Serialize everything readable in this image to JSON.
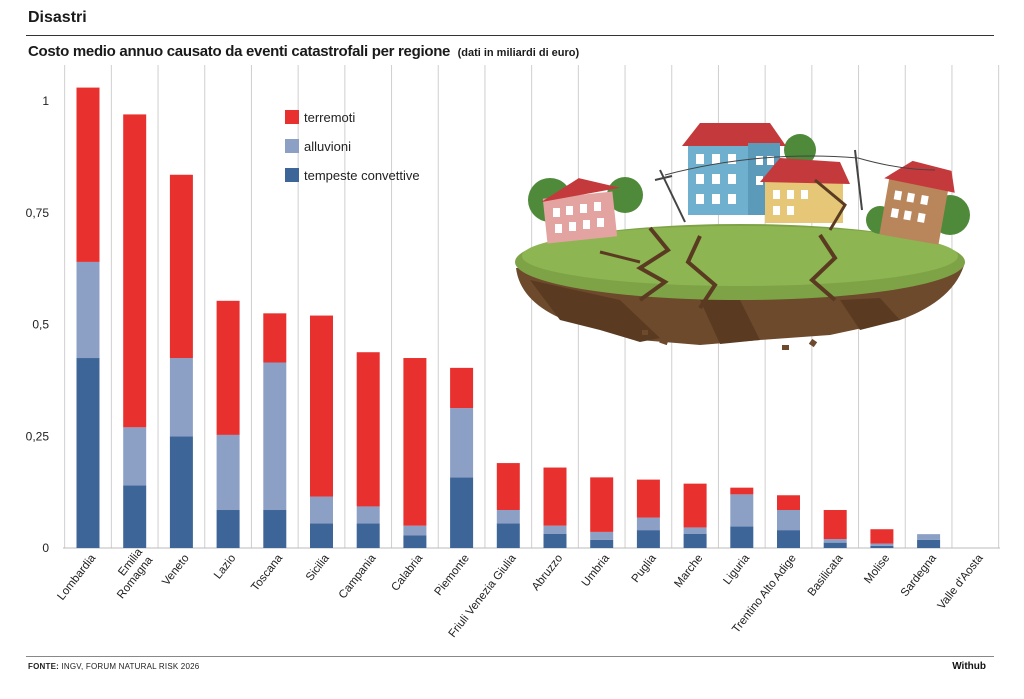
{
  "section": "Disastri",
  "footer": {
    "source_label": "FONTE:",
    "source_text": "INGV, FORUM NATURAL RISK 2026",
    "brand": "Withub"
  },
  "colors": {
    "terremoti": "#e8312e",
    "alluvioni": "#8ca0c6",
    "tempeste_convettive": "#3e6597"
  },
  "illustration": "earthquake-island-with-cracked-houses",
  "chart_data": {
    "type": "bar",
    "stacked": true,
    "title": "Costo medio annuo causato da eventi catastrofali per regione",
    "subtitle": "(dati in miliardi di euro)",
    "xlabel": "",
    "ylabel": "",
    "ylim": [
      0,
      1
    ],
    "yticks": [
      0,
      0.25,
      0.5,
      0.75,
      1
    ],
    "ytick_labels": [
      "0",
      "0,25",
      "0,5",
      "0,75",
      "1"
    ],
    "grid": "vertical",
    "legend_position": "top-left",
    "categories": [
      "Lombardia",
      "Emilia Romagna",
      "Veneto",
      "Lazio",
      "Toscana",
      "Sicilia",
      "Campania",
      "Calabria",
      "Piemonte",
      "Friuli Venezia Giulia",
      "Abruzzo",
      "Umbria",
      "Puglia",
      "Marche",
      "Liguria",
      "Trentino Alto Adige",
      "Basilicata",
      "Molise",
      "Sardegna",
      "Valle d'Aosta"
    ],
    "series": [
      {
        "name": "tempeste convettive",
        "key": "tempeste_convettive",
        "values": [
          0.425,
          0.14,
          0.25,
          0.085,
          0.085,
          0.055,
          0.055,
          0.028,
          0.158,
          0.055,
          0.032,
          0.018,
          0.04,
          0.032,
          0.048,
          0.04,
          0.012,
          0.005,
          0.018,
          0
        ]
      },
      {
        "name": "alluvioni",
        "key": "alluvioni",
        "values": [
          0.215,
          0.13,
          0.175,
          0.168,
          0.33,
          0.06,
          0.038,
          0.022,
          0.155,
          0.03,
          0.018,
          0.018,
          0.028,
          0.014,
          0.072,
          0.045,
          0.008,
          0.005,
          0.013,
          0
        ]
      },
      {
        "name": "terremoti",
        "key": "terremoti",
        "values": [
          0.39,
          0.7,
          0.41,
          0.3,
          0.11,
          0.405,
          0.345,
          0.375,
          0.09,
          0.105,
          0.13,
          0.122,
          0.085,
          0.098,
          0.015,
          0.033,
          0.065,
          0.032,
          0,
          0
        ]
      }
    ],
    "legend_order": [
      "terremoti",
      "alluvioni",
      "tempeste_convettive"
    ]
  }
}
